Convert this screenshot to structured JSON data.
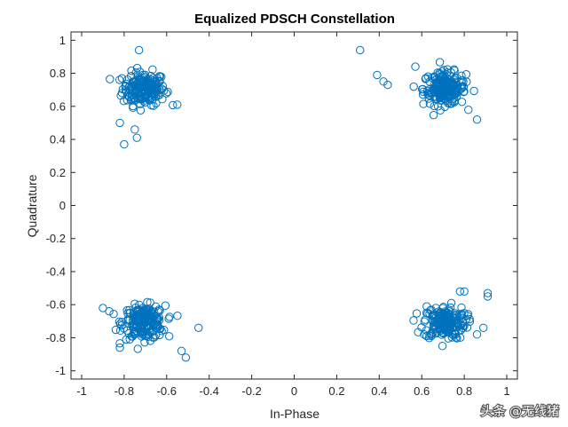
{
  "chart_data": {
    "type": "scatter",
    "title": "Equalized PDSCH Constellation",
    "xlabel": "In-Phase",
    "ylabel": "Quadrature",
    "xlim": [
      -1.05,
      1.05
    ],
    "ylim": [
      -1.05,
      1.05
    ],
    "xticks": [
      -1,
      -0.8,
      -0.6,
      -0.4,
      -0.2,
      0,
      0.2,
      0.4,
      0.6,
      0.8,
      1
    ],
    "xtick_labels": [
      "-1",
      "-0.8",
      "-0.6",
      "-0.4",
      "-0.2",
      "0",
      "0.2",
      "0.4",
      "0.6",
      "0.8",
      "1"
    ],
    "yticks": [
      -1,
      -0.8,
      -0.6,
      -0.4,
      -0.2,
      0,
      0.2,
      0.4,
      0.6,
      0.8,
      1
    ],
    "ytick_labels": [
      "-1",
      "-0.8",
      "-0.6",
      "-0.4",
      "-0.2",
      "0",
      "0.2",
      "0.4",
      "0.6",
      "0.8",
      "1"
    ],
    "grid": false,
    "marker": "open-circle",
    "marker_color": "#0072BD",
    "clusters": [
      {
        "center": [
          -0.707,
          0.707
        ],
        "spread": 0.05,
        "count": 200
      },
      {
        "center": [
          0.707,
          0.707
        ],
        "spread": 0.05,
        "count": 200
      },
      {
        "center": [
          -0.707,
          -0.707
        ],
        "spread": 0.05,
        "count": 200
      },
      {
        "center": [
          0.707,
          -0.707
        ],
        "spread": 0.05,
        "count": 200
      }
    ],
    "outliers": [
      [
        -0.73,
        0.94
      ],
      [
        -0.8,
        0.37
      ],
      [
        -0.74,
        0.41
      ],
      [
        -0.75,
        0.46
      ],
      [
        -0.82,
        0.5
      ],
      [
        -0.55,
        0.61
      ],
      [
        0.31,
        0.94
      ],
      [
        0.39,
        0.79
      ],
      [
        0.42,
        0.75
      ],
      [
        0.44,
        0.73
      ],
      [
        0.86,
        0.52
      ],
      [
        0.57,
        0.84
      ],
      [
        -0.9,
        -0.62
      ],
      [
        -0.87,
        -0.64
      ],
      [
        -0.82,
        -0.86
      ],
      [
        -0.53,
        -0.88
      ],
      [
        -0.51,
        -0.92
      ],
      [
        -0.45,
        -0.74
      ],
      [
        0.91,
        -0.53
      ],
      [
        0.91,
        -0.55
      ],
      [
        0.89,
        -0.74
      ],
      [
        0.86,
        -0.78
      ],
      [
        0.8,
        -0.52
      ],
      [
        0.78,
        -0.52
      ]
    ]
  },
  "watermark": "头条 @无线猪"
}
